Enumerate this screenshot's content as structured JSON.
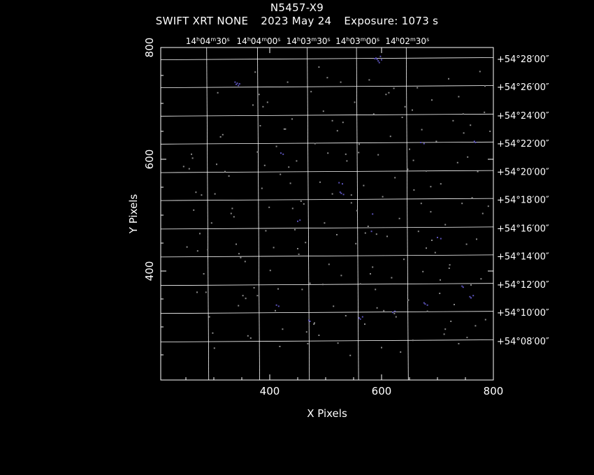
{
  "header": {
    "title": "N5457-X9",
    "instrument": "SWIFT XRT NONE",
    "date": "2023 May 24",
    "exposure": "Exposure: 1073 s"
  },
  "colors": {
    "background": "#000000",
    "grid": "#ffffff",
    "source_photon": "#5a52b8",
    "background_photon": "#8a8a8a"
  },
  "chart_data": {
    "type": "scatter",
    "title": "N5457-X9",
    "xlabel": "X Pixels",
    "ylabel": "Y Pixels",
    "xlim": [
      205,
      800
    ],
    "ylim": [
      205,
      800
    ],
    "x_ticks": [
      400,
      600,
      800
    ],
    "y_ticks": [
      400,
      600,
      800
    ],
    "x_tick_labels": [
      "400",
      "600",
      "800"
    ],
    "y_tick_labels": [
      "400",
      "600",
      "800"
    ],
    "ra_labels": [
      {
        "h": "14",
        "m": "04",
        "s": "30",
        "x": 289
      },
      {
        "h": "14",
        "m": "04",
        "s": "00",
        "x": 380
      },
      {
        "h": "14",
        "m": "03",
        "s": "30",
        "x": 469
      },
      {
        "h": "14",
        "m": "03",
        "s": "00",
        "x": 557
      },
      {
        "h": "14",
        "m": "02",
        "s": "30",
        "x": 646
      }
    ],
    "dec_labels": [
      {
        "text": "+54°28′00″",
        "y": 780
      },
      {
        "text": "+54°26′00″",
        "y": 730
      },
      {
        "text": "+54°24′00″",
        "y": 679
      },
      {
        "text": "+54°22′00″",
        "y": 629
      },
      {
        "text": "+54°20′00″",
        "y": 578
      },
      {
        "text": "+54°18′00″",
        "y": 528
      },
      {
        "text": "+54°16′00″",
        "y": 477
      },
      {
        "text": "+54°14′00″",
        "y": 427
      },
      {
        "text": "+54°12′00″",
        "y": 376
      },
      {
        "text": "+54°10′00″",
        "y": 326
      },
      {
        "text": "+54°08′00″",
        "y": 275
      }
    ],
    "grid": true,
    "series": [
      {
        "kind": "source",
        "x": [
          340,
          342,
          344,
          346,
          338,
          590,
          592,
          594,
          596,
          588,
          598,
          600,
          524,
          530,
          670,
          676,
          412,
          416,
          470,
          472,
          526,
          528,
          532,
          584,
          582,
          450,
          454,
          420,
          424,
          766,
          768,
          560,
          562,
          566,
          620,
          624,
          676,
          678,
          682,
          744,
          746,
          758,
          760,
          764,
          700,
          706
        ],
        "y": [
          734,
          736,
          732,
          735,
          738,
          781,
          779,
          776,
          773,
          780,
          784,
          778,
          558,
          556,
          630,
          628,
          339,
          337,
          312,
          310,
          541,
          539,
          537,
          502,
          471,
          489,
          491,
          611,
          609,
          632,
          630,
          316,
          314,
          318,
          326,
          328,
          343,
          341,
          339,
          373,
          371,
          354,
          352,
          356,
          460,
          458
        ]
      },
      {
        "kind": "background",
        "x": [
          262,
          268,
          275,
          282,
          292,
          301,
          312,
          320,
          331,
          345,
          352,
          361,
          370,
          378,
          386,
          393,
          401,
          410,
          418,
          426,
          434,
          441,
          450,
          458,
          466,
          474,
          481,
          490,
          498,
          506,
          514,
          522,
          531,
          538,
          546,
          554,
          562,
          570,
          578,
          586,
          594,
          602,
          610,
          618,
          626,
          634,
          642,
          650,
          658,
          666,
          674,
          682,
          690,
          698,
          706,
          714,
          722,
          730,
          738,
          746,
          754,
          762,
          770,
          778,
          786,
          794,
          256,
          264,
          271,
          286,
          298,
          307,
          316,
          327,
          336,
          348,
          357,
          366,
          374,
          383,
          391,
          399,
          407,
          415,
          423,
          432,
          440,
          448,
          456,
          464,
          472,
          480,
          488,
          496,
          504,
          512,
          520,
          528,
          536,
          544,
          552,
          560,
          568,
          576,
          584,
          592,
          600,
          608,
          616,
          624,
          632,
          640,
          648,
          656,
          664,
          672,
          680,
          688,
          696,
          704,
          712,
          720,
          728,
          736,
          744,
          752,
          760,
          768,
          776,
          784,
          260,
          278,
          305,
          340,
          372,
          396,
          428,
          461,
          495,
          527,
          559,
          591,
          623,
          655,
          688,
          721,
          753,
          785,
          246,
          289,
          333,
          378,
          412,
          445,
          479,
          512,
          546,
          580,
          613,
          647,
          680,
          714,
          747,
          781,
          270,
          302,
          356,
          388,
          437,
          468,
          503,
          536,
          571,
          604,
          637,
          671,
          705,
          738,
          772,
          252,
          296,
          344,
          381,
          419,
          452,
          488,
          521,
          556,
          589,
          622,
          657,
          690,
          724,
          759,
          791
        ],
        "y": [
          602,
          541,
          467,
          395,
          318,
          262,
          640,
          578,
          503,
          431,
          356,
          284,
          697,
          613,
          548,
          472,
          401,
          329,
          265,
          654,
          586,
          512,
          440,
          367,
          291,
          721,
          628,
          559,
          486,
          412,
          337,
          271,
          666,
          597,
          522,
          449,
          377,
          305,
          742,
          681,
          608,
          533,
          462,
          388,
          318,
          255,
          694,
          618,
          545,
          471,
          399,
          328,
          706,
          632,
          556,
          483,
          411,
          340,
          270,
          681,
          604,
          531,
          457,
          386,
          313,
          650,
          583,
          509,
          436,
          362,
          289,
          719,
          644,
          570,
          497,
          424,
          351,
          280,
          756,
          660,
          589,
          514,
          442,
          368,
          296,
          738,
          672,
          597,
          525,
          451,
          378,
          307,
          765,
          686,
          611,
          538,
          465,
          392,
          320,
          249,
          702,
          627,
          553,
          480,
          407,
          334,
          263,
          716,
          641,
          567,
          494,
          421,
          348,
          276,
          728,
          653,
          579,
          506,
          433,
          360,
          287,
          744,
          669,
          594,
          521,
          448,
          375,
          302,
          757,
          684,
          609,
          536,
          591,
          448,
          370,
          702,
          654,
          520,
          376,
          738,
          612,
          466,
          324,
          688,
          551,
          405,
          281,
          731,
          587,
          438,
          512,
          356,
          623,
          474,
          305,
          669,
          536,
          395,
          719,
          582,
          441,
          296,
          647,
          503,
          362,
          538,
          417,
          694,
          557,
          270,
          746,
          609,
          468,
          329,
          675,
          521,
          384,
          712,
          578,
          443,
          486,
          338,
          716,
          573,
          430,
          285,
          651,
          508,
          367,
          727,
          598,
          455,
          310,
          661,
          516
        ],
        "note": ""
      }
    ]
  }
}
